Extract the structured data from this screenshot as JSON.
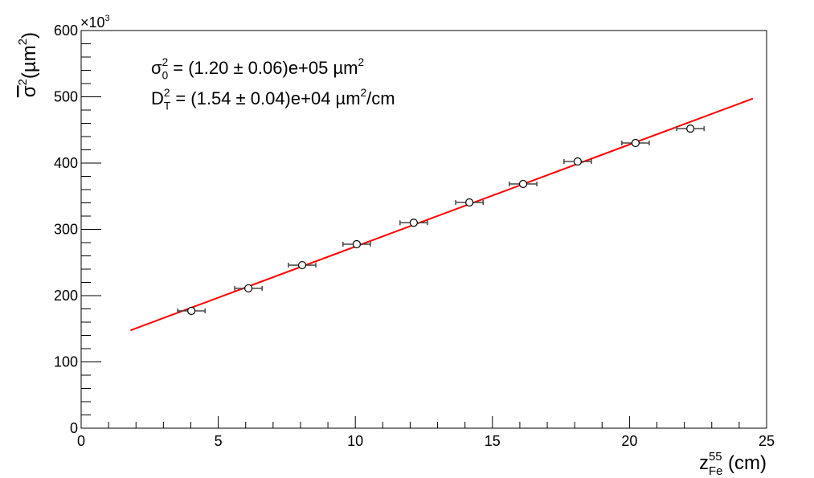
{
  "chart_data": {
    "type": "scatter",
    "xlim": [
      0,
      25
    ],
    "ylim": [
      0,
      600
    ],
    "xticks": [
      0,
      5,
      10,
      15,
      20,
      25
    ],
    "yticks": [
      0,
      100,
      200,
      300,
      400,
      500,
      600
    ],
    "xminorticks": [
      1,
      2,
      3,
      4,
      6,
      7,
      8,
      9,
      11,
      12,
      13,
      14,
      16,
      17,
      18,
      19,
      21,
      22,
      23,
      24
    ],
    "yminorticks": [
      20,
      40,
      60,
      80,
      120,
      140,
      160,
      180,
      220,
      240,
      260,
      280,
      320,
      340,
      360,
      380,
      420,
      440,
      460,
      480,
      520,
      540,
      560,
      580
    ],
    "y_multiplier": [
      {
        "text": "×10",
        "pos": "base"
      },
      {
        "text": "3",
        "pos": "sup"
      }
    ],
    "x_label": [
      {
        "text": "z",
        "pos": "base"
      },
      {
        "text": "55",
        "pos": "sup"
      },
      {
        "text": "Fe",
        "pos": "sub"
      },
      {
        "text": " (cm)",
        "pos": "base"
      }
    ],
    "y_label": [
      {
        "text": "σ",
        "pos": "over"
      },
      {
        "text": "2",
        "pos": "sup"
      },
      {
        "text": "(µm",
        "pos": "base"
      },
      {
        "text": "2",
        "pos": "sup"
      },
      {
        "text": ")",
        "pos": "base"
      }
    ],
    "annotations": [
      [
        {
          "text": "σ",
          "pos": "base"
        },
        {
          "text": "2",
          "pos": "sup"
        },
        {
          "text": "0",
          "pos": "sub"
        },
        {
          "text": " = (1.20 ± 0.06)e+05 µm",
          "pos": "base"
        },
        {
          "text": "2",
          "pos": "sup"
        }
      ],
      [
        {
          "text": "D",
          "pos": "base"
        },
        {
          "text": "2",
          "pos": "sup"
        },
        {
          "text": "T",
          "pos": "sub"
        },
        {
          "text": " = (1.54 ± 0.04)e+04 µm",
          "pos": "base"
        },
        {
          "text": "2",
          "pos": "sup"
        },
        {
          "text": "/cm",
          "pos": "base"
        }
      ]
    ],
    "series": [
      {
        "color": "#000000",
        "x": [
          4.02,
          6.1,
          8.06,
          10.05,
          12.13,
          14.16,
          16.12,
          18.11,
          20.22,
          22.22
        ],
        "xerr": [
          0.5,
          0.5,
          0.5,
          0.5,
          0.5,
          0.5,
          0.5,
          0.5,
          0.5,
          0.5
        ],
        "values": [
          177,
          211,
          246,
          277.6,
          310,
          340.6,
          368.5,
          402.4,
          430.3,
          452
        ]
      }
    ],
    "fit": {
      "color": "#ff0000",
      "x": [
        1.8,
        24.5
      ],
      "values": [
        147.7,
        497.3
      ]
    }
  }
}
